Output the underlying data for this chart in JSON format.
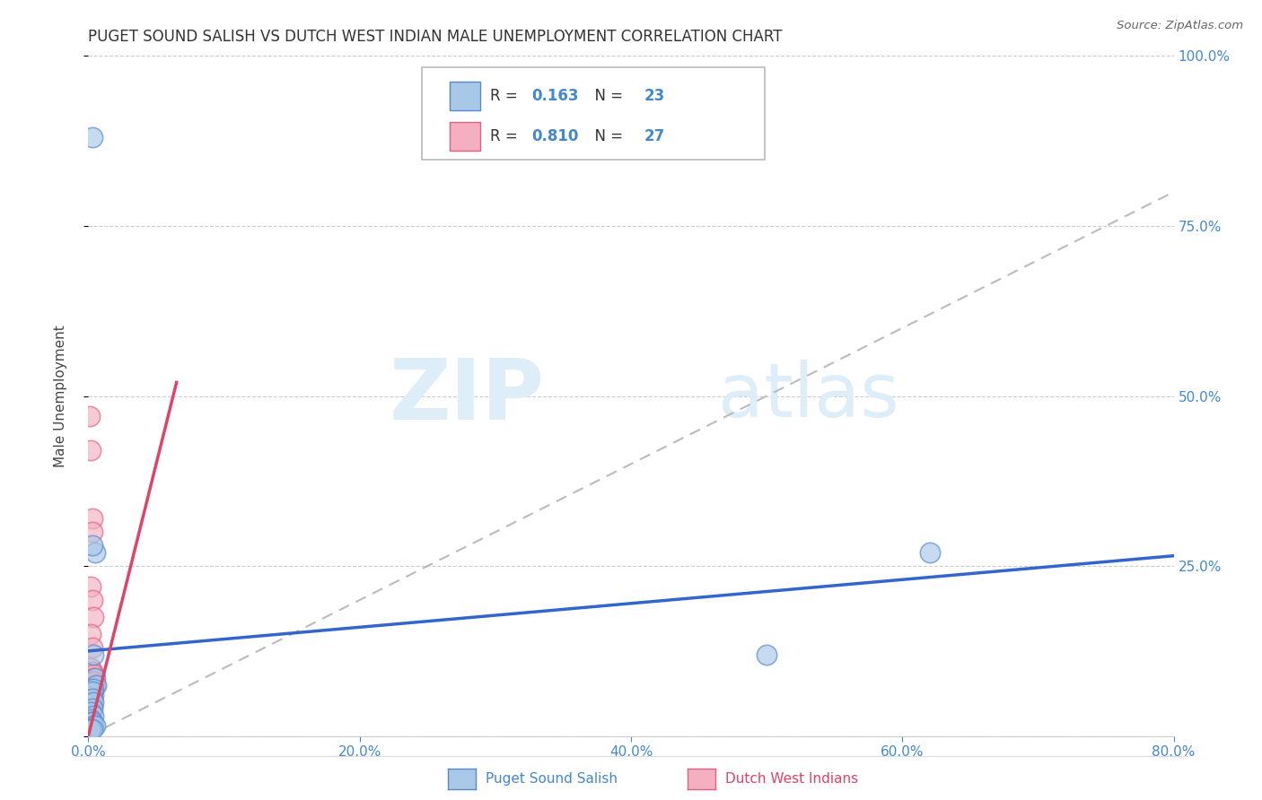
{
  "title": "PUGET SOUND SALISH VS DUTCH WEST INDIAN MALE UNEMPLOYMENT CORRELATION CHART",
  "source": "Source: ZipAtlas.com",
  "ylabel": "Male Unemployment",
  "xlim": [
    0,
    0.8
  ],
  "ylim": [
    0,
    1.0
  ],
  "xticks": [
    0.0,
    0.2,
    0.4,
    0.6,
    0.8
  ],
  "yticks_right": [
    0.25,
    0.5,
    0.75,
    1.0
  ],
  "blue_label": "Puget Sound Salish",
  "pink_label": "Dutch West Indians",
  "R_blue": 0.163,
  "N_blue": 23,
  "R_pink": 0.81,
  "N_pink": 27,
  "blue_fill": "#a8c8e8",
  "pink_fill": "#f4b0c0",
  "blue_edge": "#5588cc",
  "pink_edge": "#e06080",
  "blue_line": "#3366cc",
  "pink_line": "#dd4466",
  "scatter_blue": [
    [
      0.003,
      0.88
    ],
    [
      0.005,
      0.27
    ],
    [
      0.003,
      0.28
    ],
    [
      0.004,
      0.12
    ],
    [
      0.005,
      0.085
    ],
    [
      0.006,
      0.075
    ],
    [
      0.004,
      0.07
    ],
    [
      0.003,
      0.065
    ],
    [
      0.003,
      0.055
    ],
    [
      0.004,
      0.05
    ],
    [
      0.003,
      0.04
    ],
    [
      0.002,
      0.035
    ],
    [
      0.004,
      0.03
    ],
    [
      0.002,
      0.025
    ],
    [
      0.002,
      0.02
    ],
    [
      0.003,
      0.02
    ],
    [
      0.004,
      0.015
    ],
    [
      0.005,
      0.015
    ],
    [
      0.001,
      0.01
    ],
    [
      0.002,
      0.01
    ],
    [
      0.003,
      0.01
    ],
    [
      0.62,
      0.27
    ],
    [
      0.5,
      0.12
    ]
  ],
  "scatter_pink": [
    [
      0.001,
      0.47
    ],
    [
      0.002,
      0.42
    ],
    [
      0.003,
      0.32
    ],
    [
      0.003,
      0.3
    ],
    [
      0.002,
      0.22
    ],
    [
      0.003,
      0.2
    ],
    [
      0.004,
      0.175
    ],
    [
      0.002,
      0.15
    ],
    [
      0.003,
      0.13
    ],
    [
      0.002,
      0.1
    ],
    [
      0.003,
      0.095
    ],
    [
      0.004,
      0.09
    ],
    [
      0.004,
      0.085
    ],
    [
      0.004,
      0.08
    ],
    [
      0.005,
      0.075
    ],
    [
      0.002,
      0.07
    ],
    [
      0.003,
      0.065
    ],
    [
      0.004,
      0.06
    ],
    [
      0.002,
      0.055
    ],
    [
      0.001,
      0.05
    ],
    [
      0.003,
      0.045
    ],
    [
      0.002,
      0.04
    ],
    [
      0.001,
      0.035
    ],
    [
      0.002,
      0.03
    ],
    [
      0.001,
      0.025
    ],
    [
      0.002,
      0.02
    ],
    [
      0.003,
      0.015
    ]
  ],
  "blue_trend_x": [
    0.0,
    0.8
  ],
  "blue_trend_y": [
    0.125,
    0.265
  ],
  "pink_trend_x": [
    0.0,
    0.065
  ],
  "pink_trend_y": [
    0.0,
    0.52
  ],
  "ref_line_x": [
    0.0,
    1.0
  ],
  "ref_line_y": [
    0.0,
    1.0
  ],
  "watermark_zip": "ZIP",
  "watermark_atlas": "atlas",
  "background_color": "#ffffff",
  "grid_color": "#cccccc"
}
